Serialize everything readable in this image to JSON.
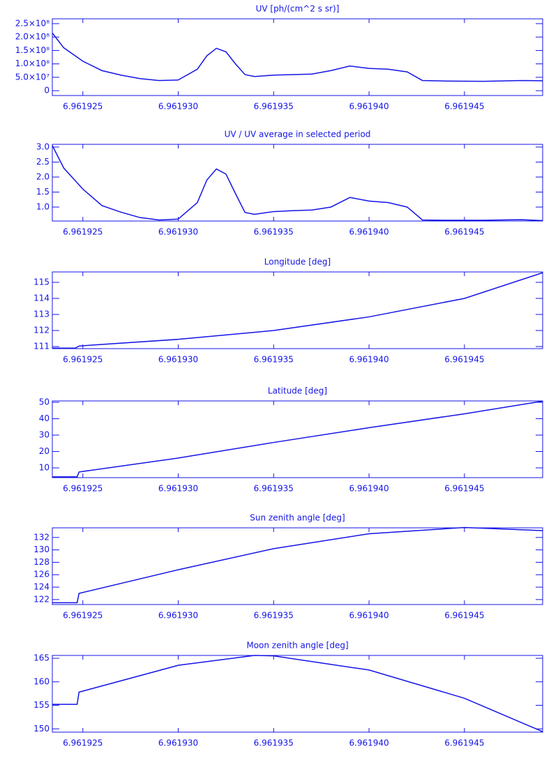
{
  "chart_data": [
    {
      "type": "line",
      "title": "UV [ph/(cm^2 s sr)]",
      "color": "#1414e6",
      "x": [
        6.9619234,
        6.961924,
        6.961925,
        6.961926,
        6.961927,
        6.961928,
        6.961929,
        6.96193,
        6.961931,
        6.9619315,
        6.961932,
        6.9619325,
        6.961933,
        6.9619335,
        6.961934,
        6.961935,
        6.961936,
        6.961937,
        6.961938,
        6.961939,
        6.96194,
        6.961941,
        6.961942,
        6.9619428,
        6.961944,
        6.961946,
        6.961948,
        6.9619491
      ],
      "values": [
        215000000,
        160000000,
        110000000,
        75000000,
        58000000,
        45000000,
        38000000,
        40000000,
        80000000,
        130000000,
        158000000,
        145000000,
        100000000,
        60000000,
        53000000,
        58000000,
        60000000,
        62000000,
        75000000,
        92000000,
        83000000,
        80000000,
        70000000,
        38000000,
        36000000,
        35000000,
        38000000,
        37000000
      ],
      "xlim": [
        6.9619234,
        6.9619491
      ],
      "xticks": [
        6.961925,
        {
          "value": 6.96193,
          "label": "6.961930"
        },
        6.961935,
        {
          "value": 6.96194,
          "label": "6.961940"
        },
        6.961945
      ],
      "ylim": [
        -18000000,
        268000000
      ],
      "yticks": [
        0,
        {
          "value": 50000000,
          "label": "5.0×10⁷"
        },
        {
          "value": 100000000,
          "label": "1.0×10⁸"
        },
        {
          "value": 150000000,
          "label": "1.5×10⁸"
        },
        {
          "value": 200000000,
          "label": "2.0×10⁸"
        },
        {
          "value": 250000000,
          "label": "2.5×10⁸"
        }
      ]
    },
    {
      "type": "line",
      "title": "UV / UV average in selected period",
      "color": "#1414e6",
      "x": [
        6.9619234,
        6.961924,
        6.961925,
        6.961926,
        6.961927,
        6.961928,
        6.961929,
        6.96193,
        6.961931,
        6.9619315,
        6.961932,
        6.9619325,
        6.961933,
        6.9619335,
        6.961934,
        6.961935,
        6.961936,
        6.961937,
        6.961938,
        6.961939,
        6.96194,
        6.961941,
        6.961942,
        6.9619428,
        6.961944,
        6.961946,
        6.961948,
        6.9619491
      ],
      "values": [
        3.05,
        2.3,
        1.6,
        1.05,
        0.83,
        0.65,
        0.57,
        0.6,
        1.15,
        1.9,
        2.27,
        2.1,
        1.45,
        0.82,
        0.76,
        0.85,
        0.88,
        0.9,
        1.0,
        1.32,
        1.2,
        1.15,
        1.0,
        0.57,
        0.56,
        0.56,
        0.58,
        0.55
      ],
      "xlim": [
        6.9619234,
        6.9619491
      ],
      "xticks": [
        6.961925,
        {
          "value": 6.96193,
          "label": "6.961930"
        },
        6.961935,
        {
          "value": 6.96194,
          "label": "6.961940"
        },
        6.961945
      ],
      "ylim": [
        0.535,
        3.09
      ],
      "yticks": [
        {
          "value": 1,
          "label": "1.0"
        },
        1.5,
        {
          "value": 2,
          "label": "2.0"
        },
        2.5,
        {
          "value": 3,
          "label": "3.0"
        }
      ]
    },
    {
      "type": "line",
      "title": "Longitude [deg]",
      "color": "#1414e6",
      "x": [
        6.9619234,
        6.9619246,
        6.9619248,
        6.961925,
        6.96193,
        6.961935,
        6.96194,
        6.961945,
        6.9619491
      ],
      "values": [
        110.9,
        110.9,
        111.03,
        111.05,
        111.45,
        112.0,
        112.85,
        114.0,
        115.6
      ],
      "xlim": [
        6.9619234,
        6.9619491
      ],
      "xticks": [
        6.961925,
        {
          "value": 6.96193,
          "label": "6.961930"
        },
        6.961935,
        {
          "value": 6.96194,
          "label": "6.961940"
        },
        6.961945
      ],
      "ylim": [
        110.87,
        115.65
      ],
      "yticks": [
        111,
        112,
        113,
        114,
        115
      ]
    },
    {
      "type": "line",
      "title": "Latitude [deg]",
      "color": "#1414e6",
      "x": [
        6.9619234,
        6.9619247,
        6.9619248,
        6.96193,
        6.961935,
        6.96194,
        6.961945,
        6.9619491
      ],
      "values": [
        4.5,
        4.5,
        7.5,
        16,
        25.5,
        34.5,
        43,
        50.7
      ],
      "xlim": [
        6.9619234,
        6.9619491
      ],
      "xticks": [
        6.961925,
        {
          "value": 6.96193,
          "label": "6.961930"
        },
        6.961935,
        {
          "value": 6.96194,
          "label": "6.961940"
        },
        6.961945
      ],
      "ylim": [
        4.04,
        50.85
      ],
      "yticks": [
        10,
        20,
        30,
        40,
        50
      ]
    },
    {
      "type": "line",
      "title": "Sun zenith angle [deg]",
      "color": "#1414e6",
      "x": [
        6.9619234,
        6.9619247,
        6.9619248,
        6.96193,
        6.961935,
        6.96194,
        6.961945,
        6.9619491
      ],
      "values": [
        121.5,
        121.5,
        123.0,
        126.8,
        130.2,
        132.6,
        133.6,
        133.1
      ],
      "xlim": [
        6.9619234,
        6.9619491
      ],
      "xticks": [
        6.961925,
        {
          "value": 6.96193,
          "label": "6.961930"
        },
        6.961935,
        {
          "value": 6.96194,
          "label": "6.961940"
        },
        6.961945
      ],
      "ylim": [
        121.2,
        133.55
      ],
      "yticks": [
        122,
        124,
        126,
        128,
        130,
        132
      ]
    },
    {
      "type": "line",
      "title": "Moon zenith angle [deg]",
      "color": "#1414e6",
      "x": [
        6.9619234,
        6.9619247,
        6.9619248,
        6.96193,
        6.961934,
        6.961935,
        6.96194,
        6.961945,
        6.9619491
      ],
      "values": [
        155.2,
        155.2,
        157.8,
        163.5,
        165.6,
        165.5,
        162.5,
        156.5,
        149.4
      ],
      "xlim": [
        6.9619234,
        6.9619491
      ],
      "xticks": [
        6.961925,
        {
          "value": 6.96193,
          "label": "6.961930"
        },
        6.961935,
        {
          "value": 6.96194,
          "label": "6.961940"
        },
        6.961945
      ],
      "ylim": [
        149.3,
        165.6
      ],
      "yticks": [
        150,
        155,
        160,
        165
      ]
    }
  ]
}
